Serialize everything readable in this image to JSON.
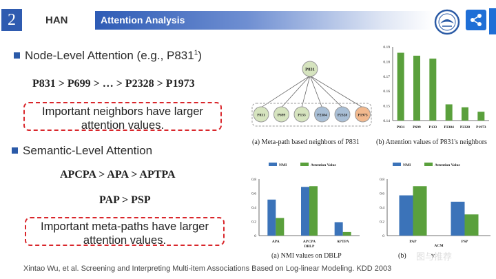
{
  "header": {
    "slide_number": "2",
    "section": "HAN",
    "title": "Attention Analysis"
  },
  "node_level": {
    "heading": "Node-Level Attention (e.g., P831",
    "heading_sup": "1",
    "heading_tail": ")",
    "ranking": "P831 > P699 > … > P2328 > P1973",
    "callout": [
      "Important neighbors have larger",
      "attention values."
    ]
  },
  "semantic_level": {
    "heading": "Semantic-Level Attention",
    "ranking_1": "APCPA > APA > APTPA",
    "ranking_2": "PAP > PSP",
    "callout": [
      "Important meta-paths have larger",
      "attention values."
    ]
  },
  "graph": {
    "root": "P831",
    "leaves": [
      "P831",
      "P699",
      "P133",
      "P2384",
      "P2328",
      "P1973"
    ],
    "leaf_colors": [
      "#d6e4bf",
      "#d6e4bf",
      "#d6e4bf",
      "#a9bfd6",
      "#a9bfd6",
      "#f2b98e"
    ],
    "caption": "(a)  Meta-path based neighbors of P831"
  },
  "captions": {
    "b": "(b)  Attention values of P831's neighbors",
    "dblp": "(a)  NMI values on DBLP",
    "acm_left": "(b)",
    "acm_right": "v"
  },
  "watermark": "图与推荐",
  "citation": "Xintao Wu, et al. Screening and Interpreting Multi-item Associations Based on Log-linear Modeling. KDD 2003",
  "colors": {
    "nmi": "#3b73b9",
    "attention": "#5aa03c",
    "bar": "#5aa03c",
    "accent": "#2f5bb0",
    "callout_border": "#d9262b"
  },
  "chart_data": [
    {
      "type": "bar",
      "categories": [
        "P831",
        "P699",
        "P133",
        "P2384",
        "P2328",
        "P1973"
      ],
      "values": [
        0.186,
        0.184,
        0.182,
        0.151,
        0.149,
        0.146
      ],
      "ylim": [
        0.14,
        0.19
      ],
      "yticks": [
        "0.14",
        "0.15",
        "0.16",
        "0.17",
        "0.18",
        "0.19"
      ]
    },
    {
      "type": "bar",
      "categories": [
        "APA",
        "APCPA",
        "APTPA"
      ],
      "category_sub": [
        "",
        "DBLP",
        ""
      ],
      "series": [
        {
          "name": "NMI",
          "values": [
            0.51,
            0.69,
            0.19
          ]
        },
        {
          "name": "Attention Value",
          "values": [
            0.25,
            0.7,
            0.05
          ]
        }
      ],
      "ylim": [
        0,
        0.8
      ],
      "yticks": [
        "0",
        "0.2",
        "0.4",
        "0.6",
        "0.8"
      ]
    },
    {
      "type": "bar",
      "categories": [
        "PAP",
        "PSP"
      ],
      "axis_label": "ACM",
      "series": [
        {
          "name": "NMI",
          "values": [
            0.57,
            0.48
          ]
        },
        {
          "name": "Attention Value",
          "values": [
            0.7,
            0.3
          ]
        }
      ],
      "ylim": [
        0,
        0.8
      ],
      "yticks": [
        "0",
        "0.2",
        "0.4",
        "0.6",
        "0.8"
      ]
    }
  ]
}
